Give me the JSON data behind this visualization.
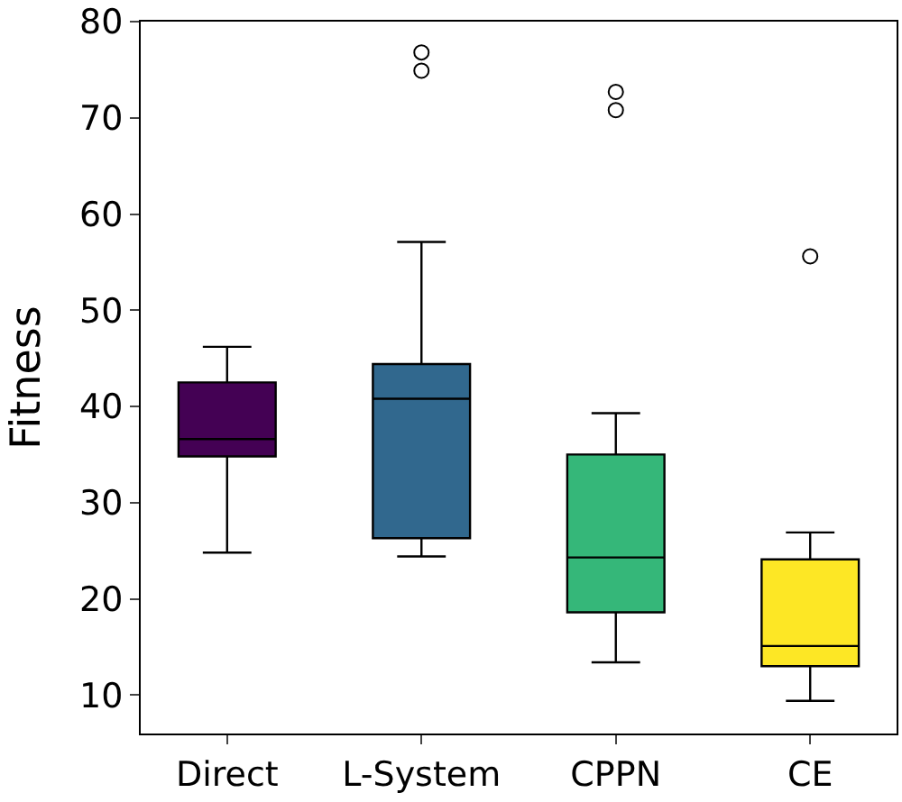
{
  "chart_data": {
    "type": "box",
    "ylabel": "Fitness",
    "categories": [
      "Direct",
      "L-System",
      "CPPN",
      "CE"
    ],
    "colors": [
      "#440154",
      "#31688e",
      "#35b779",
      "#fde725"
    ],
    "boxes": [
      {
        "low": 24.8,
        "q1": 34.8,
        "median": 36.6,
        "q3": 42.5,
        "high": 46.2
      },
      {
        "low": 24.4,
        "q1": 26.3,
        "median": 40.8,
        "q3": 44.4,
        "high": 57.1,
        "outliers": [
          74.9,
          76.8
        ]
      },
      {
        "low": 13.4,
        "q1": 18.6,
        "median": 24.3,
        "q3": 35,
        "high": 39.3,
        "outliers": [
          70.8,
          72.7
        ]
      },
      {
        "low": 9.4,
        "q1": 13,
        "median": 15.1,
        "q3": 24.1,
        "high": 26.9,
        "outliers": [
          55.6
        ]
      }
    ],
    "ylim": [
      6,
      80
    ],
    "yticks": [
      10,
      20,
      30,
      40,
      50,
      60,
      70,
      80
    ],
    "grid": false,
    "marker": "circle"
  }
}
